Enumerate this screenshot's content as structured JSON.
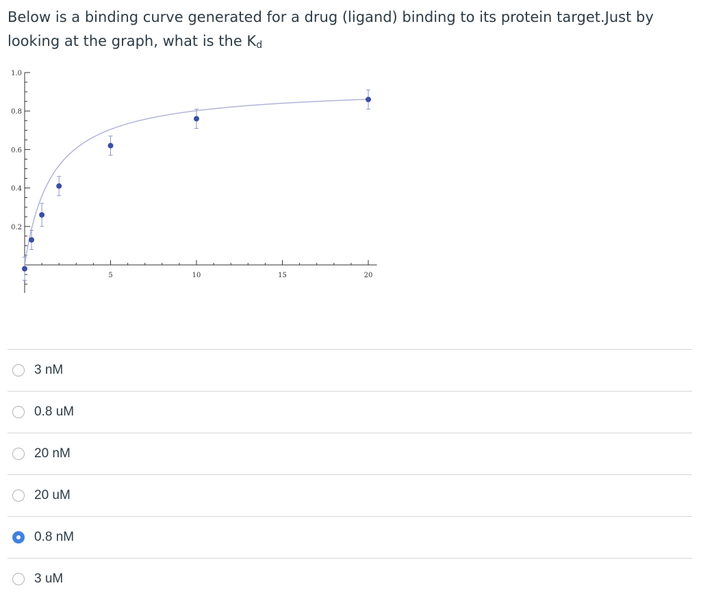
{
  "question": {
    "text": "Below is a binding curve generated for a drug (ligand) binding to its protein target.Just by looking at the graph, what is the K",
    "subscript": "d"
  },
  "chart_data": {
    "type": "scatter",
    "x_ticks": [
      5,
      10,
      15,
      20
    ],
    "x_tick_labels": [
      "5",
      "10",
      "15",
      "20"
    ],
    "y_ticks": [
      0.2,
      0.4,
      0.6,
      0.8,
      1.0
    ],
    "y_tick_labels": [
      "0.2",
      "0.4",
      "0.6",
      "0.8",
      "1.0"
    ],
    "xlim": [
      0,
      20.5
    ],
    "ylim": [
      -0.1,
      1.0
    ],
    "points": [
      {
        "x": 0,
        "y": -0.02,
        "err": 0.06
      },
      {
        "x": 0.4,
        "y": 0.13,
        "err": 0.05
      },
      {
        "x": 1,
        "y": 0.26,
        "err": 0.06
      },
      {
        "x": 2,
        "y": 0.41,
        "err": 0.05
      },
      {
        "x": 5,
        "y": 0.62,
        "err": 0.05
      },
      {
        "x": 10,
        "y": 0.76,
        "err": 0.05
      },
      {
        "x": 20,
        "y": 0.86,
        "err": 0.05
      }
    ],
    "fit": {
      "model": "hyperbolic",
      "bmax": 0.93,
      "kd": 1.6
    },
    "colors": {
      "points": "#3a4fa3",
      "error_bars": "#8a96c8",
      "curve": "#b3b3dd",
      "axes": "#333333"
    }
  },
  "answers": [
    {
      "label": "3 nM",
      "selected": false
    },
    {
      "label": "0.8 uM",
      "selected": false
    },
    {
      "label": "20 nM",
      "selected": false
    },
    {
      "label": "20 uM",
      "selected": false
    },
    {
      "label": "0.8 nM",
      "selected": true
    },
    {
      "label": "3 uM",
      "selected": false
    }
  ]
}
